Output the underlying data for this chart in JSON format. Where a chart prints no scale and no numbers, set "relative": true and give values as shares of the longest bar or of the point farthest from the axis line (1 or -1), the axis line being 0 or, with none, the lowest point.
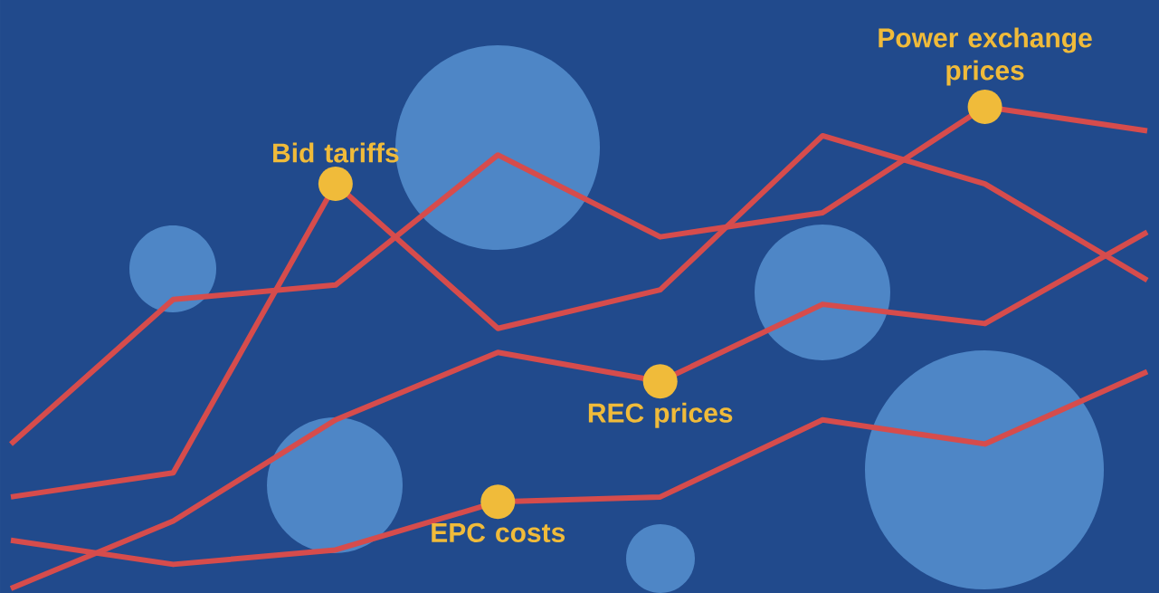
{
  "chart_data": {
    "type": "line",
    "relative": true,
    "categories": [
      null,
      null,
      null,
      null,
      null,
      null,
      null,
      null
    ],
    "series": [
      {
        "color": "#d64c4c",
        "values": [
          0.3,
          0.6,
          0.63,
          0.9,
          0.73,
          0.78,
          1,
          0.95
        ]
      },
      {
        "color": "#d64c4c",
        "values": [
          0.19,
          0.24,
          0.84,
          0.54,
          0.62,
          0.94,
          0.84,
          0.64
        ]
      },
      {
        "color": "#d64c4c",
        "values": [
          0,
          0.14,
          0.35,
          0.49,
          0.43,
          0.59,
          0.55,
          0.74
        ]
      },
      {
        "color": "#d64c4c",
        "values": [
          0.1,
          0.05,
          0.08,
          0.18,
          0.19,
          0.35,
          0.3,
          0.45
        ]
      }
    ],
    "annotations": [
      {
        "text": "Bid tariffs",
        "y": 0.84
      },
      {
        "text": "Power exchange prices",
        "y": 1
      },
      {
        "text": "REC prices",
        "y": 0.43
      },
      {
        "text": "EPC costs",
        "y": 0.18
      }
    ]
  }
}
